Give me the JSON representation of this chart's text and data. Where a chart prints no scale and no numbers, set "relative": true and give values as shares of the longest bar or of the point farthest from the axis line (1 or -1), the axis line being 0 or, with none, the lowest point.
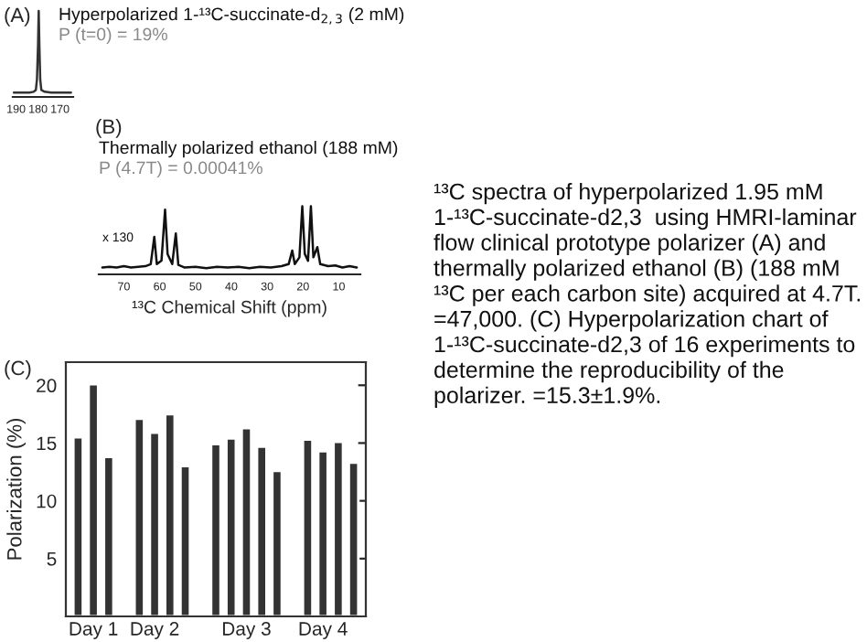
{
  "chart_data": [
    {
      "type": "line",
      "title": "(A)",
      "relative": true,
      "annotations": [
        "Hyperpolarized 1-¹³C-succinate-d$_{2,3}$ (2 mM)",
        "P (t=0) = 19%"
      ],
      "xlim": [
        191.5,
        164
      ],
      "xticks": [
        190,
        180,
        170
      ],
      "series": [
        {
          "color": "#333333",
          "x": [
            191,
            187,
            184,
            182,
            181,
            180.5,
            180,
            179.7,
            179.4,
            179,
            178.5,
            177,
            174,
            170,
            165
          ],
          "values": [
            0.05,
            0.05,
            0.05,
            0.06,
            0.08,
            0.2,
            0.6,
            1,
            0.6,
            0.2,
            0.08,
            0.06,
            0.05,
            0.05,
            0.05
          ]
        }
      ]
    },
    {
      "type": "line",
      "title": "(B)",
      "relative": true,
      "xlabel": "¹³C Chemical Shift (ppm)",
      "annotations": [
        "Thermally polarized ethanol (188 mM)",
        "P (4.7T) = 0.00041%",
        "x 130"
      ],
      "xlim": [
        77,
        4
      ],
      "xticks": [
        70,
        60,
        50,
        40,
        30,
        20,
        10
      ],
      "series": [
        {
          "color": "#111111",
          "x": [
            76,
            74,
            72,
            70,
            68,
            66,
            64,
            62.5,
            61.5,
            60.8,
            59.5,
            58.5,
            57.8,
            56.5,
            55.5,
            54.8,
            53,
            50,
            47,
            44,
            41,
            38,
            35,
            32,
            29,
            26,
            24,
            23,
            22.3,
            21,
            20.2,
            19.5,
            18.6,
            17.8,
            17.1,
            16,
            15.2,
            13,
            11,
            9,
            7,
            5
          ],
          "values": [
            0.1,
            0.11,
            0.1,
            0.12,
            0.1,
            0.11,
            0.12,
            0.15,
            0.55,
            0.15,
            0.2,
            0.95,
            0.3,
            0.15,
            0.6,
            0.14,
            0.1,
            0.11,
            0.09,
            0.11,
            0.1,
            0.11,
            0.09,
            0.11,
            0.1,
            0.12,
            0.15,
            0.35,
            0.15,
            0.25,
            1.0,
            0.3,
            0.2,
            1.0,
            0.25,
            0.4,
            0.15,
            0.12,
            0.13,
            0.1,
            0.12,
            0.1
          ]
        }
      ]
    },
    {
      "type": "bar",
      "title": "(C)",
      "ylabel": "Polarization (%)",
      "ylim": [
        0,
        22
      ],
      "yticks": [
        5,
        10,
        15,
        20
      ],
      "categories": [
        null,
        "Day 1",
        null,
        null,
        null,
        "Day 2",
        null,
        null,
        null,
        null,
        null,
        "Day 3",
        null,
        null,
        null,
        null,
        "Day 4",
        null,
        null
      ],
      "series": [
        {
          "color": "#333333",
          "values": [
            15.5,
            20.1,
            13.8,
            null,
            17.1,
            15.9,
            17.5,
            13.0,
            null,
            14.9,
            15.4,
            16.3,
            14.7,
            12.6,
            null,
            15.3,
            14.3,
            15.1,
            13.3
          ]
        }
      ]
    },
    {
      "type": "other",
      "annotations": [
        "¹³C spectra of hyperpolarized 1.95 mM 1-¹³C-succinate-d2,3  using HMRI-laminar flow clinical prototype polarizer (A) and thermally polarized ethanol (B) (188 mM ¹³C per each carbon site) acquired at 4.7T. =47,000. (C) Hyperpolarization chart of 1-¹³C-succinate-d2,3 of 16 experiments to determine the reproducibility of the polarizer. =15.3±1.9%."
      ]
    }
  ]
}
